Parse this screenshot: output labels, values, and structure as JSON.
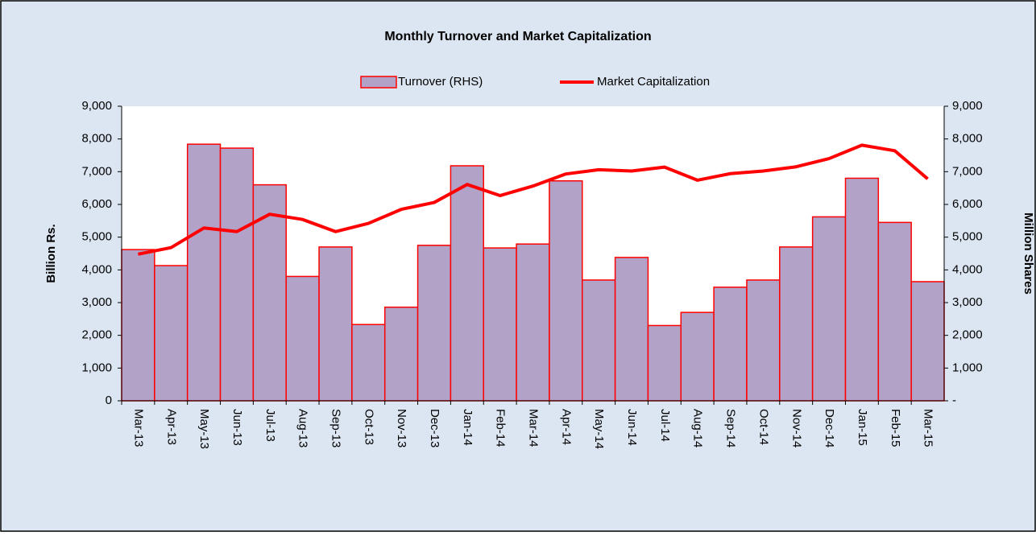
{
  "chart_data": {
    "type": "combo",
    "title": "Monthly Turnover and Market Capitalization",
    "y_label": "Billion Rs.",
    "y2_label": "Million Shares",
    "categories": [
      "Mar-13",
      "Apr-13",
      "May-13",
      "Jun-13",
      "Jul-13",
      "Aug-13",
      "Sep-13",
      "Oct-13",
      "Nov-13",
      "Dec-13",
      "Jan-14",
      "Feb-14",
      "Mar-14",
      "Apr-14",
      "May-14",
      "Jun-14",
      "Jul-14",
      "Aug-14",
      "Sep-14",
      "Oct-14",
      "Nov-14",
      "Dec-14",
      "Jan-15",
      "Feb-15",
      "Mar-15"
    ],
    "series": [
      {
        "name": "Turnover (RHS)",
        "type": "bar",
        "axis": "y2",
        "color": "#b3a2c7",
        "edge_color": "#ff0000",
        "values": [
          4620,
          4130,
          7840,
          7720,
          6600,
          3800,
          4700,
          2330,
          2860,
          4750,
          7180,
          4670,
          4790,
          6720,
          3690,
          4380,
          2300,
          2700,
          3470,
          3690,
          4700,
          5620,
          6800,
          5450,
          3640
        ]
      },
      {
        "name": "Market Capitalization",
        "type": "line",
        "axis": "y",
        "color": "#ff0000",
        "values": [
          4480,
          4680,
          5280,
          5170,
          5700,
          5540,
          5170,
          5420,
          5850,
          6060,
          6610,
          6270,
          6560,
          6930,
          7060,
          7020,
          7140,
          6740,
          6940,
          7020,
          7150,
          7400,
          7810,
          7640,
          6780
        ]
      }
    ],
    "ylim": [
      0,
      9000
    ],
    "yticks": [
      0,
      {
        "value": 1000,
        "label": "1,000"
      },
      {
        "value": 2000,
        "label": "2,000"
      },
      {
        "value": 3000,
        "label": "3,000"
      },
      {
        "value": 4000,
        "label": "4,000"
      },
      {
        "value": 5000,
        "label": "5,000"
      },
      {
        "value": 6000,
        "label": "6,000"
      },
      {
        "value": 7000,
        "label": "7,000"
      },
      {
        "value": 8000,
        "label": "8,000"
      },
      {
        "value": 9000,
        "label": "9,000"
      }
    ],
    "y2lim": [
      0,
      9000
    ],
    "y2ticks": [
      {
        "value": 0,
        "label": "-"
      },
      {
        "value": 1000,
        "label": "1,000"
      },
      {
        "value": 2000,
        "label": "2,000"
      },
      {
        "value": 3000,
        "label": "3,000"
      },
      {
        "value": 4000,
        "label": "4,000"
      },
      {
        "value": 5000,
        "label": "5,000"
      },
      {
        "value": 6000,
        "label": "6,000"
      },
      {
        "value": 7000,
        "label": "7,000"
      },
      {
        "value": 8000,
        "label": "8,000"
      },
      {
        "value": 9000,
        "label": "9,000"
      }
    ],
    "grid": false
  }
}
